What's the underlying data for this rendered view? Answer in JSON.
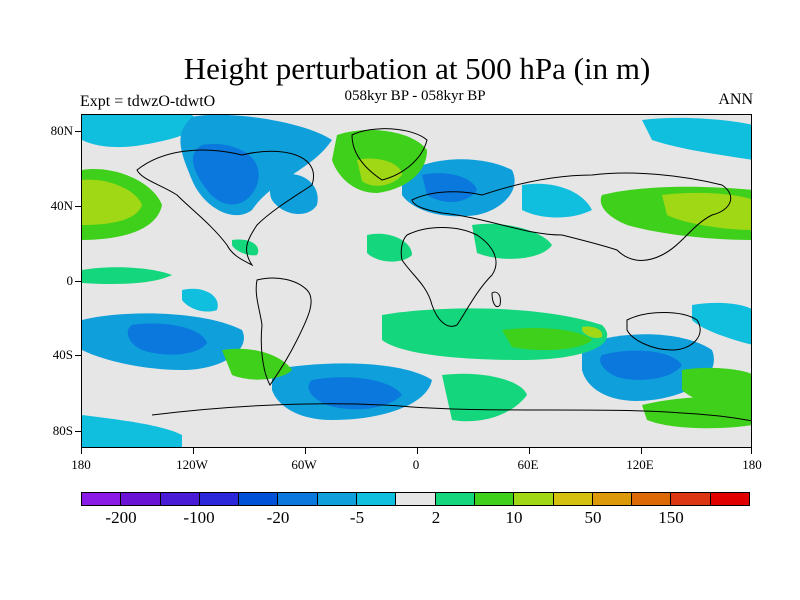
{
  "title": "Height perturbation at 500 hPa (in m)",
  "subtitle": "058kyr BP - 058kyr BP",
  "left_label": "Expt = tdwzO-tdwtO",
  "right_label": "ANN",
  "lat_labels": [
    "80N",
    "40N",
    "0",
    "40S",
    "80S"
  ],
  "lon_labels": [
    "180",
    "120W",
    "60W",
    "0",
    "60E",
    "120E",
    "180"
  ],
  "colorbar": {
    "colors": [
      "#8a1be6",
      "#6a13d4",
      "#4a1bd6",
      "#2a28d8",
      "#0050d8",
      "#0a78dc",
      "#0fa0dc",
      "#10bede",
      "#e6e6e6",
      "#14d67c",
      "#3ed01a",
      "#a0d816",
      "#d4c00e",
      "#dc9a0a",
      "#dc6806",
      "#dc3612",
      "#e00000"
    ],
    "labels": [
      "-200",
      "-100",
      "-20",
      "-5",
      "2",
      "10",
      "50",
      "150"
    ]
  },
  "colors": {
    "background": "#e6e6e6",
    "negative_dark": "#0a78dc",
    "negative_mid": "#0fa0dc",
    "negative_light": "#10bede",
    "positive_light": "#14d67c",
    "positive_mid": "#3ed01a",
    "positive_strong": "#a0d816"
  }
}
